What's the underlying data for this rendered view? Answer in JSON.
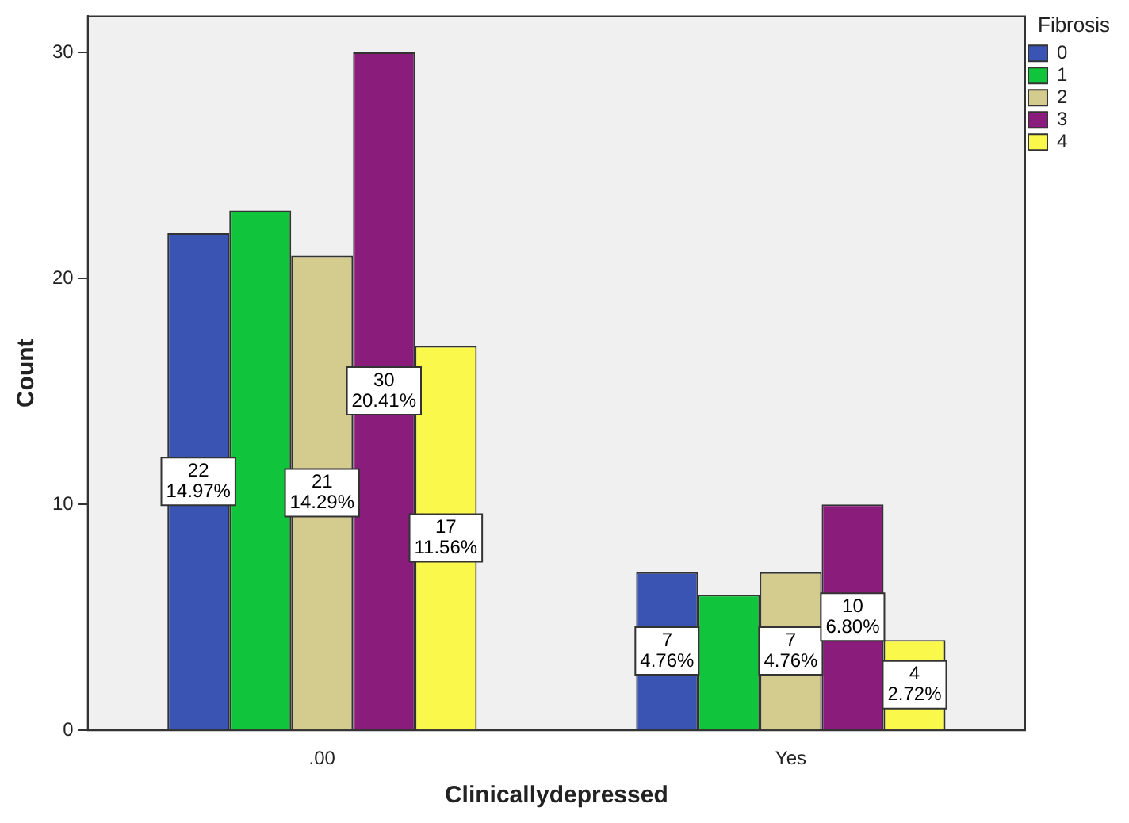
{
  "chart_data": {
    "type": "bar",
    "xlabel": "Clinicallydepressed",
    "ylabel": "Count",
    "legend_title": "Fibrosis",
    "categories": [
      ".00",
      "Yes"
    ],
    "series": [
      {
        "name": "0",
        "color": "#3a54b4",
        "values": [
          22,
          7
        ],
        "value_labels": [
          "22\n14.97%",
          "7\n4.76%"
        ]
      },
      {
        "name": "1",
        "color": "#10c43c",
        "values": [
          23,
          6
        ],
        "value_labels": [
          null,
          null
        ]
      },
      {
        "name": "2",
        "color": "#d4cc8e",
        "values": [
          21,
          7
        ],
        "value_labels": [
          "21\n14.29%",
          "7\n4.76%"
        ]
      },
      {
        "name": "3",
        "color": "#8a1c7c",
        "values": [
          30,
          10
        ],
        "value_labels": [
          "30\n20.41%",
          "10\n6.80%"
        ]
      },
      {
        "name": "4",
        "color": "#fbf84c",
        "values": [
          17,
          4
        ],
        "value_labels": [
          "17\n11.56%",
          "4\n2.72%"
        ]
      }
    ],
    "ylim": [
      0,
      31.6
    ],
    "yticks": [
      0,
      10,
      20,
      30
    ],
    "grid": false,
    "legend": "top right"
  }
}
